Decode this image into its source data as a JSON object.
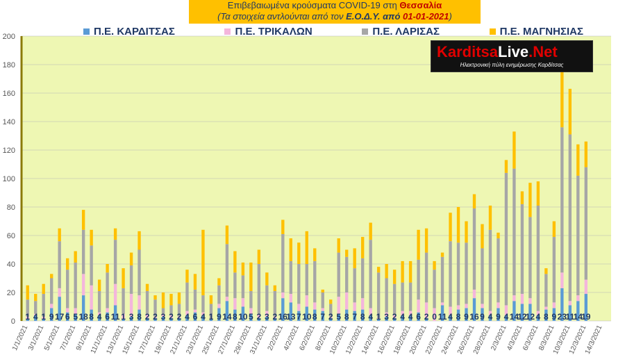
{
  "header": {
    "line1_pre": "Επιβεβαιωμένα κρούσματα COVID-19 στη ",
    "line1_hl": "Θεσσαλία",
    "line2_pre": "(Τα στοιχεία αντλούνται από τον ",
    "line2_mid": "Ε.Ο.Δ.Υ. από ",
    "line2_date": "01-01-2021",
    "line2_post": ")"
  },
  "logo": {
    "main_a": "Karditsa",
    "main_b": "Live",
    "main_c": ".Net",
    "sub": "Ηλεκτρονική πύλη ενημέρωσης Καρδίτσας"
  },
  "colors": {
    "plot_bg": "#eef7b3",
    "grid": "#b8b8b8",
    "axis_text": "#555555",
    "label_text": "#1f3864"
  },
  "chart_data": {
    "type": "bar",
    "stacked": true,
    "title": "",
    "xlabel": "",
    "ylabel": "",
    "ylim": [
      0,
      200
    ],
    "yticks": [
      0,
      20,
      40,
      60,
      80,
      100,
      120,
      140,
      160,
      180,
      200
    ],
    "grid": true,
    "legend_position": "top",
    "x_tick_labels": [
      "1/1/2021",
      "3/1/2021",
      "5/1/2021",
      "7/1/2021",
      "9/1/2021",
      "11/1/2021",
      "13/1/2021",
      "15/1/2021",
      "17/1/2021",
      "19/1/2021",
      "21/1/2021",
      "23/1/2021",
      "25/1/2021",
      "27/1/2021",
      "29/1/2021",
      "31/1/2021",
      "2/2/2021",
      "4/2/2021",
      "6/2/2021",
      "8/2/2021",
      "10/2/2021",
      "12/2/2021",
      "14/2/2021",
      "16/2/2021",
      "18/2/2021",
      "20/2/2021",
      "22/2/2021",
      "24/2/2021",
      "26/2/2021",
      "28/2/2021",
      "2/3/2021",
      "4/3/2021",
      "6/3/2021",
      "8/3/2021",
      "10/3/2021",
      "12/3/2021",
      "14/3/2021"
    ],
    "slot_count": 74,
    "series": [
      {
        "name": "Π.Ε. ΚΑΡΔΙΤΣΑΣ",
        "color": "#5b9bd5",
        "values": [
          1,
          4,
          1,
          9,
          17,
          6,
          5,
          18,
          8,
          4,
          6,
          11,
          1,
          3,
          8,
          2,
          2,
          3,
          2,
          2,
          4,
          6,
          4,
          1,
          9,
          14,
          8,
          10,
          5,
          2,
          3,
          2,
          16,
          13,
          7,
          10,
          8,
          7,
          2,
          5,
          8,
          7,
          8,
          4,
          1,
          3,
          2,
          4,
          4,
          6,
          2,
          0,
          11,
          4,
          8,
          9,
          16,
          9,
          4,
          9,
          4,
          14,
          12,
          12,
          4,
          8,
          9,
          23,
          11,
          14,
          19
        ]
      },
      {
        "name": "Π.Ε. ΤΡΙΚΑΛΩΝ",
        "color": "#f4b6dc",
        "values": [
          2,
          1,
          2,
          3,
          6,
          3,
          4,
          15,
          17,
          2,
          3,
          15,
          4,
          16,
          10,
          3,
          1,
          2,
          2,
          1,
          3,
          2,
          2,
          0,
          3,
          3,
          8,
          6,
          4,
          3,
          4,
          1,
          4,
          6,
          5,
          8,
          5,
          2,
          1,
          12,
          12,
          6,
          8,
          5,
          1,
          3,
          2,
          3,
          3,
          9,
          11,
          9,
          2,
          6,
          3,
          3,
          6,
          3,
          3,
          4,
          7,
          4,
          7,
          4,
          3,
          2,
          4,
          11,
          3,
          4,
          10
        ]
      },
      {
        "name": "Π.Ε. ΛΑΡΙΣΑΣ",
        "color": "#a6a6a6",
        "values": [
          12,
          9,
          16,
          18,
          33,
          27,
          32,
          31,
          28,
          15,
          25,
          31,
          18,
          20,
          32,
          16,
          12,
          4,
          7,
          9,
          20,
          14,
          12,
          11,
          13,
          37,
          18,
          16,
          12,
          35,
          18,
          18,
          41,
          23,
          28,
          22,
          29,
          11,
          9,
          31,
          25,
          24,
          28,
          48,
          32,
          24,
          22,
          20,
          20,
          28,
          35,
          27,
          32,
          46,
          44,
          43,
          57,
          39,
          57,
          45,
          93,
          89,
          63,
          57,
          74,
          23,
          46,
          102,
          117,
          84,
          79
        ]
      },
      {
        "name": "Π.Ε. ΜΑΓΝΗΣΙΑΣ",
        "color": "#ffc000",
        "values": [
          10,
          5,
          7,
          3,
          9,
          8,
          8,
          14,
          11,
          8,
          6,
          8,
          14,
          9,
          13,
          5,
          3,
          11,
          8,
          8,
          9,
          11,
          46,
          6,
          5,
          13,
          15,
          9,
          20,
          10,
          9,
          4,
          10,
          16,
          15,
          23,
          9,
          2,
          3,
          10,
          5,
          14,
          15,
          12,
          4,
          10,
          10,
          15,
          15,
          21,
          17,
          6,
          3,
          20,
          25,
          15,
          10,
          17,
          17,
          4,
          9,
          26,
          9,
          24,
          17,
          4,
          11,
          44,
          32,
          22,
          18
        ]
      }
    ],
    "data_labels_series": "Π.Ε. ΚΑΡΔΙΤΣΑΣ"
  }
}
